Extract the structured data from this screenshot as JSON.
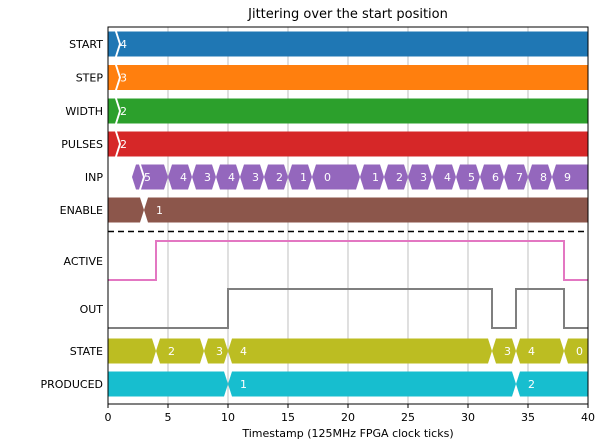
{
  "chart_data": {
    "type": "timing",
    "title": "Jittering over the start position",
    "xlabel": "Timestamp (125MHz FPGA clock ticks)",
    "xlim": [
      0,
      40
    ],
    "xticks": [
      0,
      5,
      10,
      15,
      20,
      25,
      30,
      35,
      40
    ],
    "grid": "x",
    "signals": [
      {
        "name": "START",
        "kind": "bus",
        "color": "#1f77b4",
        "segments": [
          {
            "start": 0,
            "value": "4"
          }
        ]
      },
      {
        "name": "STEP",
        "kind": "bus",
        "color": "#ff7f0e",
        "segments": [
          {
            "start": 0,
            "value": "3"
          }
        ]
      },
      {
        "name": "WIDTH",
        "kind": "bus",
        "color": "#2ca02c",
        "segments": [
          {
            "start": 0,
            "value": "2"
          }
        ]
      },
      {
        "name": "PULSES",
        "kind": "bus",
        "color": "#d62728",
        "segments": [
          {
            "start": 0,
            "value": "2"
          }
        ]
      },
      {
        "name": "INP",
        "kind": "bus",
        "color": "#9467bd",
        "segments": [
          {
            "start": 2,
            "value": "5"
          },
          {
            "start": 5,
            "value": "4"
          },
          {
            "start": 7,
            "value": "3"
          },
          {
            "start": 9,
            "value": "4"
          },
          {
            "start": 11,
            "value": "3"
          },
          {
            "start": 13,
            "value": "2"
          },
          {
            "start": 15,
            "value": "1"
          },
          {
            "start": 17,
            "value": "0"
          },
          {
            "start": 21,
            "value": "1"
          },
          {
            "start": 23,
            "value": "2"
          },
          {
            "start": 25,
            "value": "3"
          },
          {
            "start": 27,
            "value": "4"
          },
          {
            "start": 29,
            "value": "5"
          },
          {
            "start": 31,
            "value": "6"
          },
          {
            "start": 33,
            "value": "7"
          },
          {
            "start": 35,
            "value": "8"
          },
          {
            "start": 37,
            "value": "9"
          }
        ]
      },
      {
        "name": "ENABLE",
        "kind": "bus",
        "color": "#8c564b",
        "segments": [
          {
            "start": 0,
            "value": ""
          },
          {
            "start": 3,
            "value": "1"
          }
        ]
      },
      {
        "name": "ACTIVE",
        "kind": "bit",
        "color": "#e377c2",
        "levels": [
          [
            0,
            0
          ],
          [
            4,
            1
          ],
          [
            38,
            0
          ]
        ]
      },
      {
        "name": "OUT",
        "kind": "bit",
        "color": "#7f7f7f",
        "levels": [
          [
            0,
            0
          ],
          [
            10,
            1
          ],
          [
            32,
            0
          ],
          [
            34,
            1
          ],
          [
            38,
            0
          ]
        ]
      },
      {
        "name": "STATE",
        "kind": "bus",
        "color": "#bcbd22",
        "segments": [
          {
            "start": 0,
            "value": ""
          },
          {
            "start": 4,
            "value": "2"
          },
          {
            "start": 8,
            "value": "3"
          },
          {
            "start": 10,
            "value": "4"
          },
          {
            "start": 32,
            "value": "3"
          },
          {
            "start": 34,
            "value": "4"
          },
          {
            "start": 38,
            "value": "0"
          }
        ]
      },
      {
        "name": "PRODUCED",
        "kind": "bus",
        "color": "#17becf",
        "segments": [
          {
            "start": 0,
            "value": ""
          },
          {
            "start": 10,
            "value": "1"
          },
          {
            "start": 34,
            "value": "2"
          }
        ]
      }
    ],
    "separator_after": "ENABLE"
  }
}
